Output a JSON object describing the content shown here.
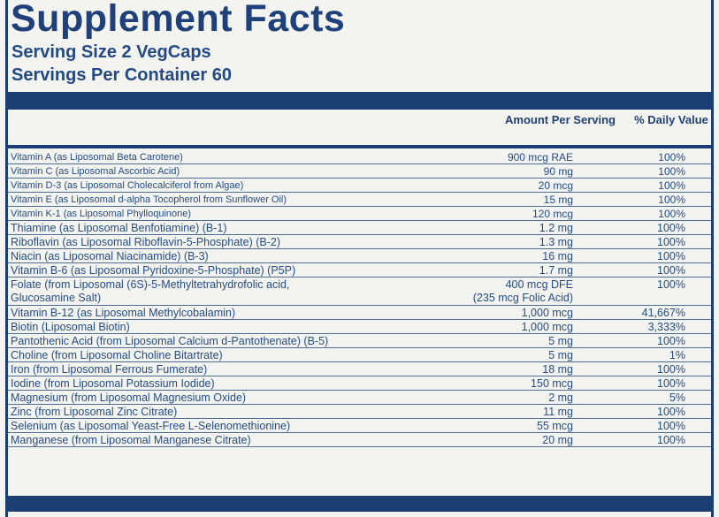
{
  "header": {
    "title": "Supplement Facts",
    "serving_size": "Serving Size 2 VegCaps",
    "servings_per_container": "Servings Per Container 60"
  },
  "table": {
    "columns": [
      "Amount Per Serving",
      "% Daily Value"
    ],
    "rows": [
      {
        "name": "Vitamin A (as Liposomal Beta Carotene)",
        "amount": "900 mcg RAE",
        "dv": "100%"
      },
      {
        "name": "Vitamin C (as Liposomal Ascorbic Acid)",
        "amount": "90 mg",
        "dv": "100%"
      },
      {
        "name": "Vitamin D-3 (as Liposomal Cholecalciferol from Algae)",
        "amount": "20 mcg",
        "dv": "100%"
      },
      {
        "name": "Vitamin E (as Liposomal d-alpha Tocopherol from Sunflower Oil)",
        "amount": "15 mg",
        "dv": "100%"
      },
      {
        "name": "Vitamin K-1 (as Liposomal Phylloquinone)",
        "amount": "120 mcg",
        "dv": "100%"
      },
      {
        "name": "Thiamine (as Liposomal Benfotiamine) (B-1)",
        "amount": "1.2 mg",
        "dv": "100%"
      },
      {
        "name": "Riboflavin (as Liposomal Riboflavin-5-Phosphate) (B-2)",
        "amount": "1.3 mg",
        "dv": "100%"
      },
      {
        "name": "Niacin (as Liposomal Niacinamide) (B-3)",
        "amount": "16 mg",
        "dv": "100%"
      },
      {
        "name": "Vitamin B-6 (as Liposomal Pyridoxine-5-Phosphate) (P5P)",
        "amount": "1.7 mg",
        "dv": "100%"
      },
      {
        "name": "Folate (from Liposomal (6S)-5-Methyltetrahydrofolic acid,\nGlucosamine Salt)",
        "amount": "400 mcg DFE\n(235 mcg Folic Acid)",
        "dv": "100%"
      },
      {
        "name": "Vitamin B-12 (as Liposomal Methylcobalamin)",
        "amount": "1,000 mcg",
        "dv": "41,667%"
      },
      {
        "name": "Biotin (Liposomal Biotin)",
        "amount": "1,000 mcg",
        "dv": "3,333%"
      },
      {
        "name": "Pantothenic Acid (from Liposomal Calcium d-Pantothenate) (B-5)",
        "amount": "5 mg",
        "dv": "100%"
      },
      {
        "name": "Choline (from Liposomal Choline Bitartrate)",
        "amount": "5 mg",
        "dv": "1%"
      },
      {
        "name": "Iron (from Liposomal Ferrous Fumerate)",
        "amount": "18 mg",
        "dv": "100%"
      },
      {
        "name": "Iodine (from Liposomal Potassium Iodide)",
        "amount": "150 mcg",
        "dv": "100%"
      },
      {
        "name": "Magnesium (from Liposomal Magnesium Oxide)",
        "amount": "2 mg",
        "dv": "5%"
      },
      {
        "name": "Zinc (from Liposomal Zinc Citrate)",
        "amount": "11 mg",
        "dv": "100%"
      },
      {
        "name": "Selenium (as Liposomal Yeast-Free L-Selenomethionine)",
        "amount": "55 mcg",
        "dv": "100%"
      },
      {
        "name": "Manganese (from Liposomal Manganese Citrate)",
        "amount": "20 mg",
        "dv": "100%"
      }
    ]
  },
  "colors": {
    "primary": "#1b3f73",
    "text": "#254c86",
    "background": "#f3f3ef"
  }
}
